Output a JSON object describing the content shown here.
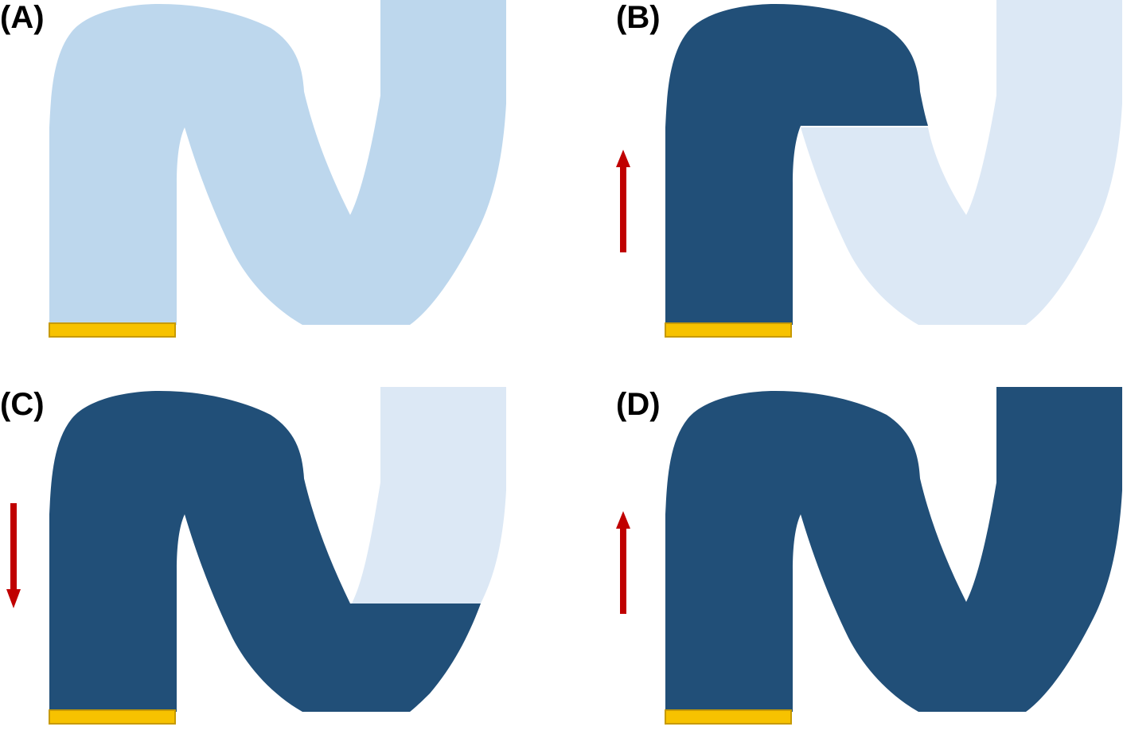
{
  "colors": {
    "filled": "#214f78",
    "empty": "#bdd7ed",
    "empty_partial": "#dce8f5",
    "electrode": "#f7c200",
    "electrode_border": "#c79a00",
    "arrow": "#c00000"
  },
  "panels": [
    {
      "label": "(A)",
      "fill_state": "empty",
      "arrow": "none"
    },
    {
      "label": "(B)",
      "fill_state": "left-column-and-top-arch-filled",
      "arrow": "up"
    },
    {
      "label": "(C)",
      "fill_state": "all-but-right-column-filled",
      "arrow": "down"
    },
    {
      "label": "(D)",
      "fill_state": "full",
      "arrow": "up"
    }
  ]
}
